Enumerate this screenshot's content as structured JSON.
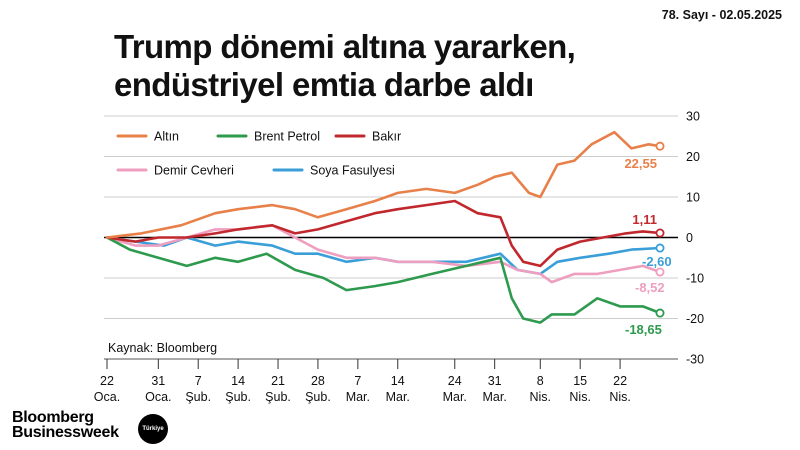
{
  "issue_label": "78. Sayı - 02.05.2025",
  "title_line1": "Trump dönemi altına yararken,",
  "title_line2": "endüstriyel emtia darbe aldı",
  "source": "Kaynak: Bloomberg",
  "logo_line1": "Bloomberg",
  "logo_line2": "Businessweek",
  "logo_badge": "Türkiye",
  "colors": {
    "Altın": "#e8804a",
    "Brent Petrol": "#2e9a4e",
    "Bakır": "#c0282d",
    "Demir Cevheri": "#ee9ebf",
    "Soya Fasulyesi": "#3a9fd8",
    "grid": "#bdbdbd",
    "zero": "#000000"
  },
  "chart_data": {
    "type": "line",
    "title": "Trump dönemi altına yararken, endüstriyel emtia darbe aldı",
    "xlabel": "",
    "ylabel": "",
    "ylim": [
      -30,
      30
    ],
    "yticks": [
      30,
      20,
      10,
      0,
      -10,
      -20,
      -30
    ],
    "x_tick_labels": [
      {
        "day": "22",
        "month": "Oca."
      },
      {
        "day": "31",
        "month": "Oca."
      },
      {
        "day": "7",
        "month": "Şub."
      },
      {
        "day": "14",
        "month": "Şub."
      },
      {
        "day": "21",
        "month": "Şub."
      },
      {
        "day": "28",
        "month": "Şub."
      },
      {
        "day": "7",
        "month": "Mar."
      },
      {
        "day": "14",
        "month": "Mar."
      },
      {
        "day": "24",
        "month": "Mar."
      },
      {
        "day": "31",
        "month": "Mar."
      },
      {
        "day": "8",
        "month": "Nis."
      },
      {
        "day": "15",
        "month": "Nis."
      },
      {
        "day": "22",
        "month": "Nis."
      }
    ],
    "x_ticks": [
      "2025-01-22",
      "2025-01-31",
      "2025-02-07",
      "2025-02-14",
      "2025-02-21",
      "2025-02-28",
      "2025-03-07",
      "2025-03-14",
      "2025-03-24",
      "2025-03-31",
      "2025-04-08",
      "2025-04-15",
      "2025-04-22"
    ],
    "x_range": [
      "2025-01-22",
      "2025-04-29"
    ],
    "grid": true,
    "legend_position": "top-left",
    "series": [
      {
        "name": "Altın",
        "end_label": "22,55",
        "points": [
          [
            "2025-01-22",
            0
          ],
          [
            "2025-01-28",
            1
          ],
          [
            "2025-02-04",
            3
          ],
          [
            "2025-02-10",
            6
          ],
          [
            "2025-02-14",
            7
          ],
          [
            "2025-02-20",
            8
          ],
          [
            "2025-02-24",
            7
          ],
          [
            "2025-02-28",
            5
          ],
          [
            "2025-03-05",
            7
          ],
          [
            "2025-03-10",
            9
          ],
          [
            "2025-03-14",
            11
          ],
          [
            "2025-03-19",
            12
          ],
          [
            "2025-03-24",
            11
          ],
          [
            "2025-03-28",
            13
          ],
          [
            "2025-03-31",
            15
          ],
          [
            "2025-04-03",
            16
          ],
          [
            "2025-04-06",
            11
          ],
          [
            "2025-04-08",
            10
          ],
          [
            "2025-04-11",
            18
          ],
          [
            "2025-04-14",
            19
          ],
          [
            "2025-04-17",
            23
          ],
          [
            "2025-04-21",
            26
          ],
          [
            "2025-04-24",
            22
          ],
          [
            "2025-04-27",
            23
          ],
          [
            "2025-04-29",
            22.55
          ]
        ]
      },
      {
        "name": "Brent Petrol",
        "end_label": "-18,65",
        "points": [
          [
            "2025-01-22",
            0
          ],
          [
            "2025-01-26",
            -3
          ],
          [
            "2025-01-31",
            -5
          ],
          [
            "2025-02-05",
            -7
          ],
          [
            "2025-02-10",
            -5
          ],
          [
            "2025-02-14",
            -6
          ],
          [
            "2025-02-19",
            -4
          ],
          [
            "2025-02-24",
            -8
          ],
          [
            "2025-03-01",
            -10
          ],
          [
            "2025-03-05",
            -13
          ],
          [
            "2025-03-10",
            -12
          ],
          [
            "2025-03-14",
            -11
          ],
          [
            "2025-03-20",
            -9
          ],
          [
            "2025-03-26",
            -7
          ],
          [
            "2025-04-01",
            -5
          ],
          [
            "2025-04-03",
            -15
          ],
          [
            "2025-04-05",
            -20
          ],
          [
            "2025-04-08",
            -21
          ],
          [
            "2025-04-10",
            -19
          ],
          [
            "2025-04-14",
            -19
          ],
          [
            "2025-04-18",
            -15
          ],
          [
            "2025-04-22",
            -17
          ],
          [
            "2025-04-26",
            -17
          ],
          [
            "2025-04-29",
            -18.65
          ]
        ]
      },
      {
        "name": "Bakır",
        "end_label": "1,11",
        "points": [
          [
            "2025-01-22",
            0
          ],
          [
            "2025-01-27",
            -1
          ],
          [
            "2025-01-31",
            0
          ],
          [
            "2025-02-05",
            0
          ],
          [
            "2025-02-10",
            1
          ],
          [
            "2025-02-14",
            2
          ],
          [
            "2025-02-20",
            3
          ],
          [
            "2025-02-24",
            1
          ],
          [
            "2025-02-28",
            2
          ],
          [
            "2025-03-05",
            4
          ],
          [
            "2025-03-10",
            6
          ],
          [
            "2025-03-14",
            7
          ],
          [
            "2025-03-19",
            8
          ],
          [
            "2025-03-24",
            9
          ],
          [
            "2025-03-28",
            6
          ],
          [
            "2025-04-01",
            5
          ],
          [
            "2025-04-03",
            -2
          ],
          [
            "2025-04-05",
            -6
          ],
          [
            "2025-04-08",
            -7
          ],
          [
            "2025-04-11",
            -3
          ],
          [
            "2025-04-15",
            -1
          ],
          [
            "2025-04-19",
            0
          ],
          [
            "2025-04-23",
            1
          ],
          [
            "2025-04-26",
            1.5
          ],
          [
            "2025-04-29",
            1.11
          ]
        ]
      },
      {
        "name": "Demir Cevheri",
        "end_label": "-8,52",
        "points": [
          [
            "2025-01-22",
            0
          ],
          [
            "2025-01-27",
            -2
          ],
          [
            "2025-01-31",
            -2
          ],
          [
            "2025-02-05",
            0
          ],
          [
            "2025-02-10",
            2
          ],
          [
            "2025-02-14",
            2
          ],
          [
            "2025-02-20",
            3
          ],
          [
            "2025-02-24",
            0
          ],
          [
            "2025-02-28",
            -3
          ],
          [
            "2025-03-05",
            -5
          ],
          [
            "2025-03-10",
            -5
          ],
          [
            "2025-03-14",
            -6
          ],
          [
            "2025-03-20",
            -6
          ],
          [
            "2025-03-26",
            -7
          ],
          [
            "2025-04-01",
            -6
          ],
          [
            "2025-04-04",
            -8
          ],
          [
            "2025-04-08",
            -9
          ],
          [
            "2025-04-10",
            -11
          ],
          [
            "2025-04-14",
            -9
          ],
          [
            "2025-04-18",
            -9
          ],
          [
            "2025-04-22",
            -8
          ],
          [
            "2025-04-26",
            -7
          ],
          [
            "2025-04-29",
            -8.52
          ]
        ]
      },
      {
        "name": "Soya Fasulyesi",
        "end_label": "-2,60",
        "points": [
          [
            "2025-01-22",
            0
          ],
          [
            "2025-01-27",
            -1
          ],
          [
            "2025-02-01",
            -2
          ],
          [
            "2025-02-05",
            0
          ],
          [
            "2025-02-10",
            -2
          ],
          [
            "2025-02-14",
            -1
          ],
          [
            "2025-02-20",
            -2
          ],
          [
            "2025-02-24",
            -4
          ],
          [
            "2025-02-28",
            -4
          ],
          [
            "2025-03-05",
            -6
          ],
          [
            "2025-03-10",
            -5
          ],
          [
            "2025-03-14",
            -6
          ],
          [
            "2025-03-20",
            -6
          ],
          [
            "2025-03-26",
            -6
          ],
          [
            "2025-04-01",
            -4
          ],
          [
            "2025-04-04",
            -8
          ],
          [
            "2025-04-08",
            -9
          ],
          [
            "2025-04-11",
            -6
          ],
          [
            "2025-04-15",
            -5
          ],
          [
            "2025-04-20",
            -4
          ],
          [
            "2025-04-24",
            -3
          ],
          [
            "2025-04-29",
            -2.6
          ]
        ]
      }
    ]
  }
}
